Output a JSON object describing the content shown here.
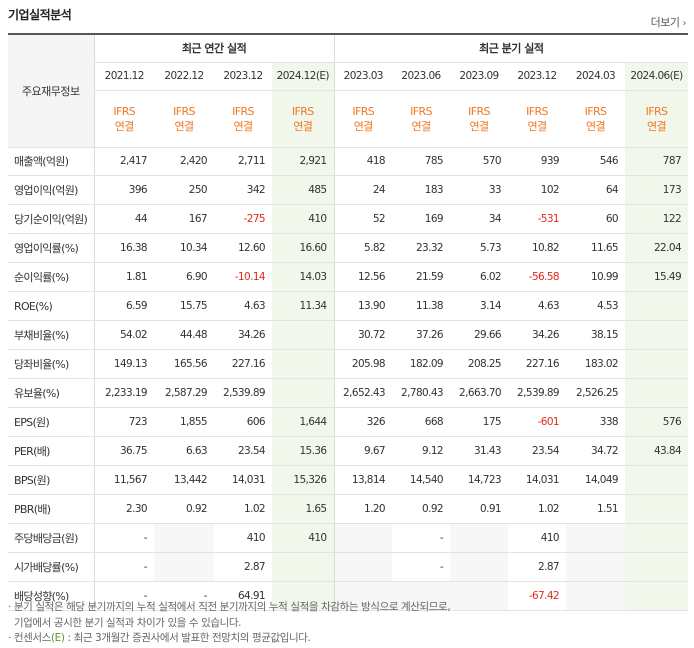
{
  "title": "기업실적분석",
  "more_label": "더보기",
  "row_header_label": "주요재무정보",
  "group_headers": {
    "annual": "최근 연간 실적",
    "quarterly": "최근 분기 실적"
  },
  "periods": {
    "annual": [
      "2021.12",
      "2022.12",
      "2023.12",
      "2024.12(E)"
    ],
    "quarterly": [
      "2023.03",
      "2023.06",
      "2023.09",
      "2023.12",
      "2024.03",
      "2024.06(E)"
    ]
  },
  "standard": {
    "top": "IFRS",
    "bottom": "연결"
  },
  "rows": [
    {
      "label": "매출액(억원)",
      "values": [
        "2,417",
        "2,420",
        "2,711",
        "2,921",
        "418",
        "785",
        "570",
        "939",
        "546",
        "787"
      ]
    },
    {
      "label": "영업이익(억원)",
      "values": [
        "396",
        "250",
        "342",
        "485",
        "24",
        "183",
        "33",
        "102",
        "64",
        "173"
      ]
    },
    {
      "label": "당기순이익(억원)",
      "values": [
        "44",
        "167",
        "-275",
        "410",
        "52",
        "169",
        "34",
        "-531",
        "60",
        "122"
      ]
    },
    {
      "label": "영업이익률(%)",
      "values": [
        "16.38",
        "10.34",
        "12.60",
        "16.60",
        "5.82",
        "23.32",
        "5.73",
        "10.82",
        "11.65",
        "22.04"
      ]
    },
    {
      "label": "순이익률(%)",
      "values": [
        "1.81",
        "6.90",
        "-10.14",
        "14.03",
        "12.56",
        "21.59",
        "6.02",
        "-56.58",
        "10.99",
        "15.49"
      ]
    },
    {
      "label": "ROE(%)",
      "values": [
        "6.59",
        "15.75",
        "4.63",
        "11.34",
        "13.90",
        "11.38",
        "3.14",
        "4.63",
        "4.53",
        ""
      ]
    },
    {
      "label": "부채비율(%)",
      "values": [
        "54.02",
        "44.48",
        "34.26",
        "",
        "30.72",
        "37.26",
        "29.66",
        "34.26",
        "38.15",
        ""
      ]
    },
    {
      "label": "당좌비율(%)",
      "values": [
        "149.13",
        "165.56",
        "227.16",
        "",
        "205.98",
        "182.09",
        "208.25",
        "227.16",
        "183.02",
        ""
      ]
    },
    {
      "label": "유보율(%)",
      "values": [
        "2,233.19",
        "2,587.29",
        "2,539.89",
        "",
        "2,652.43",
        "2,780.43",
        "2,663.70",
        "2,539.89",
        "2,526.25",
        ""
      ]
    },
    {
      "label": "EPS(원)",
      "values": [
        "723",
        "1,855",
        "606",
        "1,644",
        "326",
        "668",
        "175",
        "-601",
        "338",
        "576"
      ]
    },
    {
      "label": "PER(배)",
      "values": [
        "36.75",
        "6.63",
        "23.54",
        "15.36",
        "9.67",
        "9.12",
        "31.43",
        "23.54",
        "34.72",
        "43.84"
      ]
    },
    {
      "label": "BPS(원)",
      "values": [
        "11,567",
        "13,442",
        "14,031",
        "15,326",
        "13,814",
        "14,540",
        "14,723",
        "14,031",
        "14,049",
        ""
      ]
    },
    {
      "label": "PBR(배)",
      "values": [
        "2.30",
        "0.92",
        "1.02",
        "1.65",
        "1.20",
        "0.92",
        "0.91",
        "1.02",
        "1.51",
        ""
      ]
    },
    {
      "label": "주당배당금(원)",
      "values": [
        "-",
        "",
        "410",
        "410",
        "",
        "-",
        "",
        "410",
        "",
        ""
      ]
    },
    {
      "label": "시가배당률(%)",
      "values": [
        "-",
        "",
        "2.87",
        "",
        "",
        "-",
        "",
        "2.87",
        "",
        ""
      ]
    },
    {
      "label": "배당성향(%)",
      "values": [
        "-",
        "-",
        "64.91",
        "",
        "",
        "",
        "",
        "-67.42",
        "",
        ""
      ]
    }
  ],
  "footnotes": [
    "분기 실적은 해당 분기까지의 누적 실적에서 직전 분기까지의 누적 실적을 차감하는 방식으로 계산되므로,",
    "기업에서 공시한 분기 실적과 차이가 있을 수 있습니다.",
    "컨센서스(E) : 최근 3개월간 증권사에서 발표한 전망치의 평균값입니다."
  ],
  "colors": {
    "accent_orange": "#f07820",
    "negative_red": "#e2291f",
    "estimate_bg": "#f2f7ec"
  }
}
